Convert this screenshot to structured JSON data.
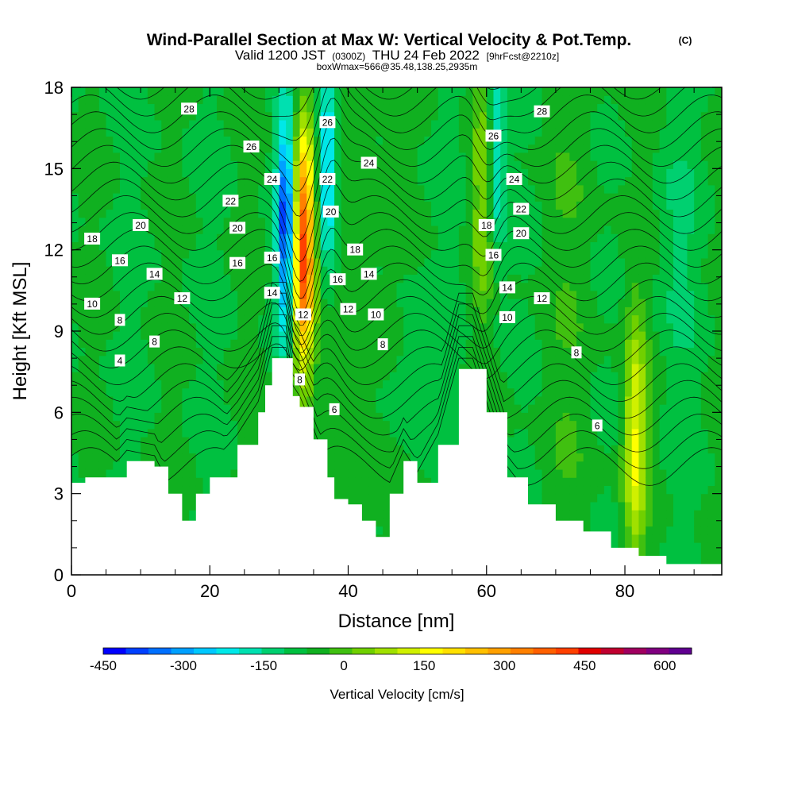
{
  "chart_data": {
    "type": "heatmap",
    "title": "Wind-Parallel Section at Max W: Vertical Velocity & Pot.Temp.",
    "title_mark": "(C)",
    "subtitle_parts": [
      "Valid 1200 JST",
      "(0300Z)",
      "THU 24 Feb 2022",
      "[9hrFcst@2210z]"
    ],
    "subtitle2": "boxWmax=566@35.48,138.25,2935m",
    "xlabel": "Distance [nm]",
    "ylabel": "Height [Kft MSL]",
    "xlim": [
      0,
      94
    ],
    "ylim": [
      0,
      18
    ],
    "x_ticks": [
      "0",
      "20",
      "40",
      "60",
      "80"
    ],
    "y_ticks": [
      "0",
      "3",
      "6",
      "9",
      "12",
      "15",
      "18"
    ],
    "colorbar": {
      "label": "Vertical Velocity [cm/s]",
      "ticks": [
        "-450",
        "-300",
        "-150",
        "0",
        "150",
        "300",
        "450",
        "600"
      ],
      "range": [
        -450,
        650
      ],
      "step": 50,
      "colors": [
        "#0000ff",
        "#0040ff",
        "#0070ff",
        "#00a0ff",
        "#00c8ff",
        "#00e8e8",
        "#00e0b0",
        "#00d070",
        "#00c040",
        "#10b020",
        "#40c010",
        "#70d000",
        "#a0e000",
        "#d0f000",
        "#ffff00",
        "#ffe000",
        "#ffc000",
        "#ffa000",
        "#ff8000",
        "#ff6000",
        "#ff4000",
        "#e00000",
        "#c00030",
        "#a00060",
        "#800080",
        "#600090"
      ]
    },
    "terrain_kft": [
      [
        0,
        3.4
      ],
      [
        2,
        3.6
      ],
      [
        6,
        3.6
      ],
      [
        8,
        4.2
      ],
      [
        12,
        4.0
      ],
      [
        14,
        3.0
      ],
      [
        16,
        2.0
      ],
      [
        18,
        3.0
      ],
      [
        20,
        3.6
      ],
      [
        24,
        4.8
      ],
      [
        27,
        6.0
      ],
      [
        28,
        7.0
      ],
      [
        29,
        8.0
      ],
      [
        31,
        8.0
      ],
      [
        32,
        6.6
      ],
      [
        33,
        6.2
      ],
      [
        35,
        5.0
      ],
      [
        37,
        3.6
      ],
      [
        38,
        2.8
      ],
      [
        40,
        2.6
      ],
      [
        42,
        2.0
      ],
      [
        44,
        1.4
      ],
      [
        46,
        3.0
      ],
      [
        48,
        4.2
      ],
      [
        50,
        3.4
      ],
      [
        53,
        4.8
      ],
      [
        56,
        7.6
      ],
      [
        58,
        7.6
      ],
      [
        60,
        6.0
      ],
      [
        63,
        3.6
      ],
      [
        66,
        2.6
      ],
      [
        70,
        2.0
      ],
      [
        74,
        1.6
      ],
      [
        78,
        1.0
      ],
      [
        82,
        0.7
      ],
      [
        86,
        0.4
      ],
      [
        94,
        0.4
      ]
    ],
    "updraft_cores": [
      {
        "x_nm": 33.5,
        "z_kft": 12.0,
        "w": 600
      },
      {
        "x_nm": 59.5,
        "z_kft": 14.0,
        "w": 150
      },
      {
        "x_nm": 81.5,
        "z_kft": 5.0,
        "w": 250
      }
    ],
    "downdraft_cores": [
      {
        "x_nm": 31.0,
        "z_kft": 13.0,
        "w": -400
      },
      {
        "x_nm": 37.0,
        "z_kft": 15.0,
        "w": -250
      },
      {
        "x_nm": 61.5,
        "z_kft": 15.5,
        "w": -180
      }
    ],
    "contour_labels": [
      {
        "text": "28",
        "x": 17,
        "z": 17.2
      },
      {
        "text": "26",
        "x": 26,
        "z": 15.8
      },
      {
        "text": "24",
        "x": 29,
        "z": 14.6
      },
      {
        "text": "22",
        "x": 23,
        "z": 13.8
      },
      {
        "text": "20",
        "x": 10,
        "z": 12.9
      },
      {
        "text": "20",
        "x": 24,
        "z": 12.8
      },
      {
        "text": "18",
        "x": 3,
        "z": 12.4
      },
      {
        "text": "16",
        "x": 7,
        "z": 11.6
      },
      {
        "text": "16",
        "x": 24,
        "z": 11.5
      },
      {
        "text": "16",
        "x": 29,
        "z": 11.7
      },
      {
        "text": "14",
        "x": 12,
        "z": 11.1
      },
      {
        "text": "14",
        "x": 29,
        "z": 10.4
      },
      {
        "text": "12",
        "x": 16,
        "z": 10.2
      },
      {
        "text": "10",
        "x": 3,
        "z": 10.0
      },
      {
        "text": "8",
        "x": 7,
        "z": 9.4
      },
      {
        "text": "8",
        "x": 12,
        "z": 8.6
      },
      {
        "text": "4",
        "x": 7,
        "z": 7.9
      },
      {
        "text": "26",
        "x": 37,
        "z": 16.7
      },
      {
        "text": "22",
        "x": 37,
        "z": 14.6
      },
      {
        "text": "20",
        "x": 37.5,
        "z": 13.4
      },
      {
        "text": "24",
        "x": 43,
        "z": 15.2
      },
      {
        "text": "18",
        "x": 41,
        "z": 12.0
      },
      {
        "text": "16",
        "x": 38.5,
        "z": 10.9
      },
      {
        "text": "14",
        "x": 43,
        "z": 11.1
      },
      {
        "text": "12",
        "x": 33.5,
        "z": 9.6
      },
      {
        "text": "12",
        "x": 40,
        "z": 9.8
      },
      {
        "text": "10",
        "x": 44,
        "z": 9.6
      },
      {
        "text": "8",
        "x": 45,
        "z": 8.5
      },
      {
        "text": "8",
        "x": 33,
        "z": 7.2
      },
      {
        "text": "6",
        "x": 38,
        "z": 6.1
      },
      {
        "text": "28",
        "x": 68,
        "z": 17.1
      },
      {
        "text": "26",
        "x": 61,
        "z": 16.2
      },
      {
        "text": "24",
        "x": 64,
        "z": 14.6
      },
      {
        "text": "22",
        "x": 65,
        "z": 13.5
      },
      {
        "text": "20",
        "x": 65,
        "z": 12.6
      },
      {
        "text": "18",
        "x": 60,
        "z": 12.9
      },
      {
        "text": "16",
        "x": 61,
        "z": 11.8
      },
      {
        "text": "14",
        "x": 63,
        "z": 10.6
      },
      {
        "text": "12",
        "x": 68,
        "z": 10.2
      },
      {
        "text": "10",
        "x": 63,
        "z": 9.5
      },
      {
        "text": "8",
        "x": 73,
        "z": 8.2
      },
      {
        "text": "6",
        "x": 76,
        "z": 5.5
      }
    ]
  }
}
